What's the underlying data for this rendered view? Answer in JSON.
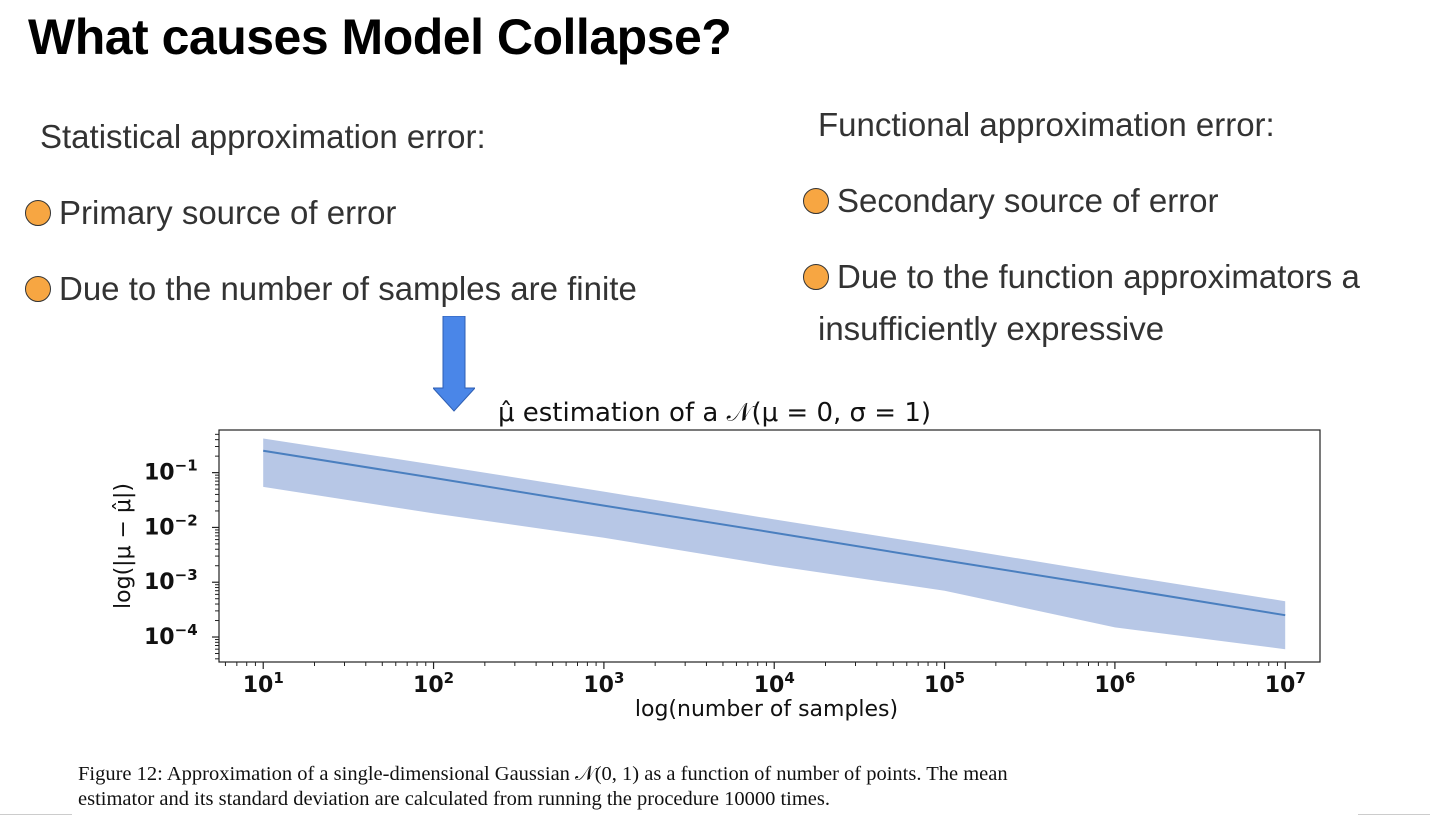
{
  "slide": {
    "title": "What causes Model Collapse?",
    "left": {
      "heading": "Statistical approximation error:",
      "bullets": [
        "Primary source of error",
        "Due to the number of samples are finite"
      ]
    },
    "right": {
      "heading": "Functional approximation error:",
      "bullets": [
        "Secondary source of error",
        "Due to the function approximators a"
      ],
      "wrap_line": "insufficiently expressive"
    },
    "caption": {
      "line1": "Figure 12: Approximation of a single-dimensional Gaussian 𝒩(0, 1) as a function of number of points. The mean",
      "line2": "estimator and its standard deviation are calculated from running the procedure 10000 times."
    }
  },
  "colors": {
    "bullet": "#f7a642",
    "arrow": "#4a86e8",
    "line": "#4a7fbf",
    "band": "#b7c7e6"
  },
  "chart_data": {
    "type": "line",
    "title": "μ̂ estimation of a 𝒩(μ = 0, σ = 1)",
    "xlabel": "log(number of samples)",
    "ylabel": "log(|μ − μ̂|)",
    "xscale": "log",
    "yscale": "log",
    "xlim": [
      5.5,
      16000000
    ],
    "ylim": [
      3.5e-05,
      0.6
    ],
    "xticks": [
      10,
      100,
      1000,
      10000,
      100000,
      1000000,
      10000000
    ],
    "xtick_labels": [
      [
        "10",
        "1"
      ],
      [
        "10",
        "2"
      ],
      [
        "10",
        "3"
      ],
      [
        "10",
        "4"
      ],
      [
        "10",
        "5"
      ],
      [
        "10",
        "6"
      ],
      [
        "10",
        "7"
      ]
    ],
    "yticks": [
      0.1,
      0.01,
      0.001,
      0.0001
    ],
    "ytick_labels": [
      [
        "10",
        "−1"
      ],
      [
        "10",
        "−2"
      ],
      [
        "10",
        "−3"
      ],
      [
        "10",
        "−4"
      ]
    ],
    "series": [
      {
        "x": [
          10,
          100,
          1000,
          10000,
          100000,
          1000000,
          10000000
        ],
        "mean": [
          0.25,
          0.08,
          0.025,
          0.008,
          0.0025,
          0.0008,
          0.00025
        ],
        "upper": [
          0.42,
          0.14,
          0.045,
          0.014,
          0.0045,
          0.0014,
          0.00045
        ],
        "lower": [
          0.055,
          0.018,
          0.0065,
          0.002,
          0.0007,
          0.00015,
          6e-05
        ]
      }
    ]
  }
}
